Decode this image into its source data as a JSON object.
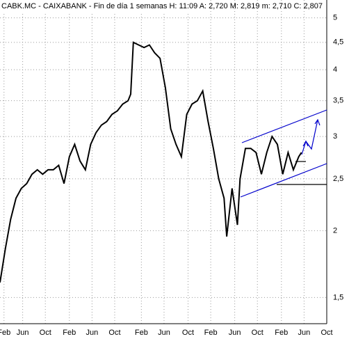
{
  "chart_data": {
    "type": "line",
    "title": "CABK.MC - CAIXABANK - Fin de día 1 semanas H: 11:09 A: 2,720 M: 2,819 m: 2,710 C: 2,807",
    "x": [
      0,
      4,
      8,
      12,
      16,
      20,
      24,
      28,
      32,
      36,
      40,
      44,
      48,
      52,
      56,
      60,
      64,
      68,
      72,
      76,
      80,
      84,
      88,
      92,
      96,
      98,
      100,
      104,
      108,
      112,
      116,
      120,
      124,
      128,
      132,
      136,
      140,
      144,
      148,
      152,
      156,
      160,
      164,
      168,
      170,
      174,
      178,
      180,
      184,
      188,
      192,
      196,
      200,
      204,
      208,
      212,
      216,
      220,
      224,
      226
    ],
    "series": [
      {
        "color": "#000000",
        "values": [
          1.6,
          1.85,
          2.1,
          2.3,
          2.4,
          2.45,
          2.55,
          2.6,
          2.55,
          2.6,
          2.6,
          2.65,
          2.45,
          2.75,
          2.9,
          2.7,
          2.6,
          2.9,
          3.05,
          3.15,
          3.2,
          3.3,
          3.35,
          3.45,
          3.5,
          3.6,
          4.5,
          4.45,
          4.4,
          4.45,
          4.3,
          4.2,
          3.7,
          3.1,
          2.9,
          2.75,
          3.3,
          3.45,
          3.5,
          3.65,
          3.2,
          2.85,
          2.5,
          2.3,
          1.95,
          2.4,
          2.05,
          2.5,
          2.85,
          2.85,
          2.8,
          2.55,
          2.8,
          3.0,
          2.9,
          2.55,
          2.8,
          2.6,
          2.75,
          2.8
        ]
      }
    ],
    "xlim": [
      0,
      245
    ],
    "xticks": [
      {
        "value": 3,
        "label": "Feb"
      },
      {
        "value": 17,
        "label": "Jun"
      },
      {
        "value": 34,
        "label": "Oct"
      },
      {
        "value": 52,
        "label": "Feb"
      },
      {
        "value": 69,
        "label": "Jun"
      },
      {
        "value": 86,
        "label": "Oct"
      },
      {
        "value": 106,
        "label": "Feb"
      },
      {
        "value": 123,
        "label": "Jun"
      },
      {
        "value": 141,
        "label": "Oct"
      },
      {
        "value": 158,
        "label": "Feb"
      },
      {
        "value": 176,
        "label": "Jun"
      },
      {
        "value": 193,
        "label": "Oct"
      },
      {
        "value": 211,
        "label": "Feb"
      },
      {
        "value": 228,
        "label": "Jun"
      },
      {
        "value": 245,
        "label": "Oct"
      }
    ],
    "ylim": [
      1.34,
      5.4
    ],
    "log_y": true,
    "yticks": [
      {
        "value": 1.5,
        "label": "1,5"
      },
      2,
      {
        "value": 2.5,
        "label": "2,5"
      },
      3,
      {
        "value": 3.5,
        "label": "3,5"
      },
      4,
      {
        "value": 4.5,
        "label": "4,5"
      },
      5
    ],
    "grid": true
  }
}
